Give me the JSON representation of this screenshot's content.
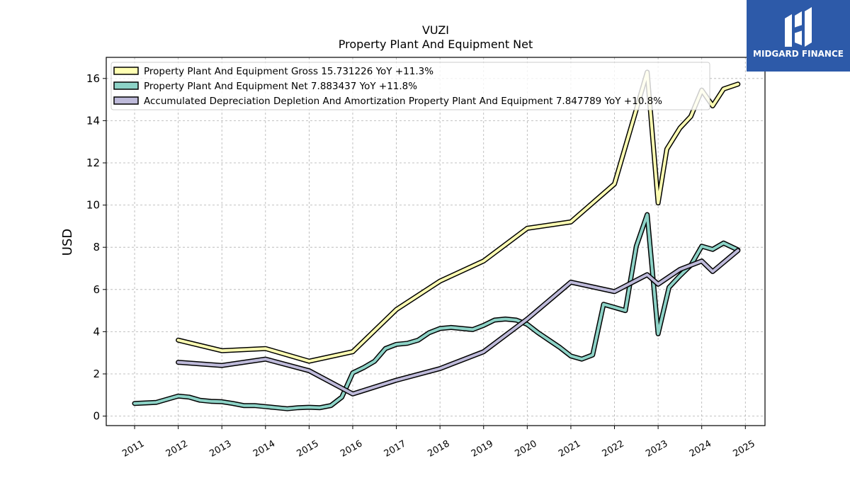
{
  "chart_data": {
    "type": "line",
    "title": "VUZI",
    "subtitle": "Property Plant And Equipment Net",
    "ylabel": "USD",
    "xlabel": "",
    "xlim": [
      2010.35,
      2025.45
    ],
    "ylim": [
      -0.45,
      17.0
    ],
    "yticks": [
      0,
      2,
      4,
      6,
      8,
      10,
      12,
      14,
      16
    ],
    "xticks": [
      2011,
      2012,
      2013,
      2014,
      2015,
      2016,
      2017,
      2018,
      2019,
      2020,
      2021,
      2022,
      2023,
      2024,
      2025
    ],
    "grid": true,
    "legend_position": "top-left",
    "series": [
      {
        "name": "Property Plant And Equipment Gross  15.731226 YoY +11.3%",
        "color": "#ffffb3",
        "x": [
          2012.0,
          2013.0,
          2014.0,
          2015.0,
          2016.0,
          2017.0,
          2018.0,
          2019.0,
          2020.0,
          2021.0,
          2022.0,
          2022.75,
          2023.0,
          2023.2,
          2023.5,
          2023.75,
          2024.0,
          2024.25,
          2024.5,
          2024.83
        ],
        "values": [
          3.6,
          3.1,
          3.2,
          2.6,
          3.05,
          5.05,
          6.4,
          7.35,
          8.9,
          9.2,
          11.0,
          16.3,
          10.1,
          12.65,
          13.65,
          14.2,
          15.45,
          14.7,
          15.5,
          15.73
        ]
      },
      {
        "name": "Property Plant And Equipment Net  7.883437 YoY +11.8%",
        "color": "#8dd3c7",
        "x": [
          2011.0,
          2011.5,
          2012.0,
          2012.25,
          2012.5,
          2012.75,
          2013.0,
          2013.25,
          2013.5,
          2013.75,
          2014.0,
          2014.25,
          2014.5,
          2014.75,
          2015.0,
          2015.25,
          2015.5,
          2015.75,
          2016.0,
          2016.25,
          2016.5,
          2016.75,
          2017.0,
          2017.25,
          2017.5,
          2017.75,
          2018.0,
          2018.25,
          2018.5,
          2018.75,
          2019.0,
          2019.25,
          2019.5,
          2019.75,
          2020.0,
          2020.25,
          2020.5,
          2020.75,
          2021.0,
          2021.25,
          2021.5,
          2021.75,
          2022.0,
          2022.25,
          2022.5,
          2022.75,
          2023.0,
          2023.25,
          2023.5,
          2023.75,
          2024.0,
          2024.25,
          2024.5,
          2024.83
        ],
        "values": [
          0.6,
          0.65,
          0.95,
          0.9,
          0.75,
          0.7,
          0.68,
          0.6,
          0.5,
          0.5,
          0.45,
          0.4,
          0.35,
          0.4,
          0.42,
          0.4,
          0.5,
          0.9,
          2.05,
          2.3,
          2.6,
          3.2,
          3.4,
          3.45,
          3.6,
          3.95,
          4.15,
          4.2,
          4.15,
          4.1,
          4.3,
          4.55,
          4.6,
          4.55,
          4.35,
          3.95,
          3.6,
          3.25,
          2.85,
          2.7,
          2.9,
          5.3,
          5.15,
          5.0,
          8.05,
          9.55,
          3.9,
          6.1,
          6.65,
          7.15,
          8.05,
          7.9,
          8.2,
          7.88
        ]
      },
      {
        "name": "Accumulated Depreciation Depletion And Amortization Property Plant And Equipment  7.847789 YoY +10.8%",
        "color": "#bebada",
        "x": [
          2012.0,
          2013.0,
          2014.0,
          2015.0,
          2016.0,
          2017.0,
          2018.0,
          2019.0,
          2020.0,
          2021.0,
          2022.0,
          2022.75,
          2023.0,
          2023.5,
          2024.0,
          2024.25,
          2024.83
        ],
        "values": [
          2.55,
          2.4,
          2.7,
          2.15,
          1.05,
          1.7,
          2.25,
          3.05,
          4.6,
          6.35,
          5.9,
          6.7,
          6.25,
          6.95,
          7.35,
          6.85,
          7.85
        ]
      }
    ]
  },
  "logo": {
    "text": "MIDGARD FINANCE",
    "color": "#2d5aa9"
  }
}
